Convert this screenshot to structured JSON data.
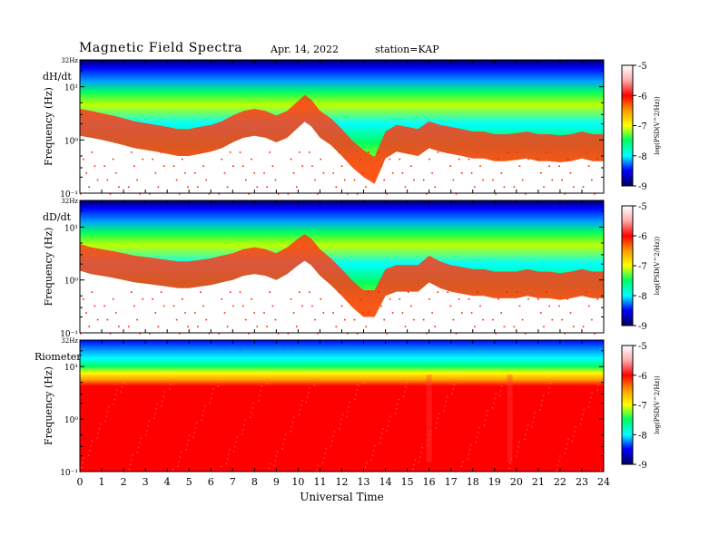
{
  "header": {
    "title": "Magnetic  Field  Spectra",
    "date": "Apr. 14, 2022",
    "station": "station=KAP"
  },
  "colors": {
    "colormap": [
      "#000060",
      "#0000ff",
      "#00a0ff",
      "#00ffff",
      "#00ff60",
      "#c0ff00",
      "#ffff00",
      "#ffa000",
      "#ff0000",
      "#ffffff"
    ],
    "background": "#ffffff"
  },
  "chart_data": {
    "type": "heatmap",
    "xlabel": "Universal Time",
    "x_ticks": [
      "0",
      "1",
      "2",
      "3",
      "4",
      "5",
      "6",
      "7",
      "8",
      "9",
      "10",
      "11",
      "12",
      "13",
      "14",
      "15",
      "16",
      "17",
      "18",
      "19",
      "20",
      "21",
      "22",
      "23",
      "24"
    ],
    "xlim": [
      0,
      24
    ],
    "ylim": [
      0.1,
      32
    ],
    "yscale": "log",
    "colorbar": {
      "label": "log(PSD(V^2/Hz))",
      "ticks": [
        "-5",
        "-6",
        "-7",
        "-8",
        "-9"
      ],
      "range": [
        -9,
        -5
      ]
    },
    "panels": [
      {
        "label": "dH/dt",
        "ylabel": "Frequency  (Hz)",
        "y_ticks": [
          "32Hz",
          "10¹",
          "10⁰",
          "10⁻¹"
        ],
        "red_envelope_hours": [
          0,
          0.5,
          1,
          1.5,
          2,
          2.5,
          3,
          3.5,
          4,
          4.5,
          5,
          5.5,
          6,
          6.5,
          7,
          7.5,
          8,
          8.5,
          9,
          9.5,
          10,
          10.3,
          10.6,
          11,
          11.5,
          12,
          12.5,
          13,
          13.5,
          14,
          14.5,
          15,
          15.5,
          16,
          16.5,
          17,
          17.5,
          18,
          18.5,
          19,
          19.5,
          20,
          20.5,
          21,
          21.5,
          22,
          22.5,
          23,
          23.5,
          24
        ],
        "red_envelope_hz": [
          1.2,
          1.1,
          1.0,
          0.9,
          0.8,
          0.7,
          0.65,
          0.6,
          0.55,
          0.5,
          0.5,
          0.55,
          0.6,
          0.7,
          0.9,
          1.1,
          1.2,
          1.1,
          0.9,
          1.1,
          1.7,
          2.2,
          1.8,
          1.1,
          0.8,
          0.5,
          0.3,
          0.2,
          0.15,
          0.45,
          0.6,
          0.55,
          0.5,
          0.7,
          0.6,
          0.55,
          0.5,
          0.45,
          0.45,
          0.4,
          0.4,
          0.42,
          0.45,
          0.4,
          0.4,
          0.38,
          0.4,
          0.45,
          0.4,
          0.4
        ]
      },
      {
        "label": "dD/dt",
        "ylabel": "Frequency  (Hz)",
        "y_ticks": [
          "32Hz",
          "10¹",
          "10⁰",
          "10⁻¹"
        ],
        "red_envelope_hours": [
          0,
          0.5,
          1,
          1.5,
          2,
          2.5,
          3,
          3.5,
          4,
          4.5,
          5,
          5.5,
          6,
          6.5,
          7,
          7.5,
          8,
          8.5,
          9,
          9.5,
          10,
          10.3,
          10.6,
          11,
          11.5,
          12,
          12.5,
          13,
          13.5,
          14,
          14.5,
          15,
          15.5,
          16,
          16.5,
          17,
          17.5,
          18,
          18.5,
          19,
          19.5,
          20,
          20.5,
          21,
          21.5,
          22,
          22.5,
          23,
          23.5,
          24
        ],
        "red_envelope_hz": [
          1.5,
          1.3,
          1.2,
          1.1,
          1.0,
          0.9,
          0.85,
          0.8,
          0.75,
          0.7,
          0.7,
          0.75,
          0.8,
          0.9,
          1.0,
          1.2,
          1.3,
          1.2,
          1.0,
          1.3,
          1.9,
          2.3,
          1.9,
          1.2,
          0.8,
          0.5,
          0.3,
          0.2,
          0.2,
          0.5,
          0.6,
          0.6,
          0.6,
          0.9,
          0.7,
          0.6,
          0.55,
          0.5,
          0.5,
          0.45,
          0.45,
          0.45,
          0.5,
          0.45,
          0.45,
          0.42,
          0.45,
          0.5,
          0.45,
          0.45
        ]
      },
      {
        "label": "Riometer",
        "ylabel": "Frequency  (Hz)",
        "y_ticks": [
          "32Hz",
          "10¹",
          "10⁰",
          "10⁻¹"
        ],
        "red_band_top_hz": 7,
        "features_hours": [
          16.0,
          19.7
        ]
      }
    ]
  }
}
